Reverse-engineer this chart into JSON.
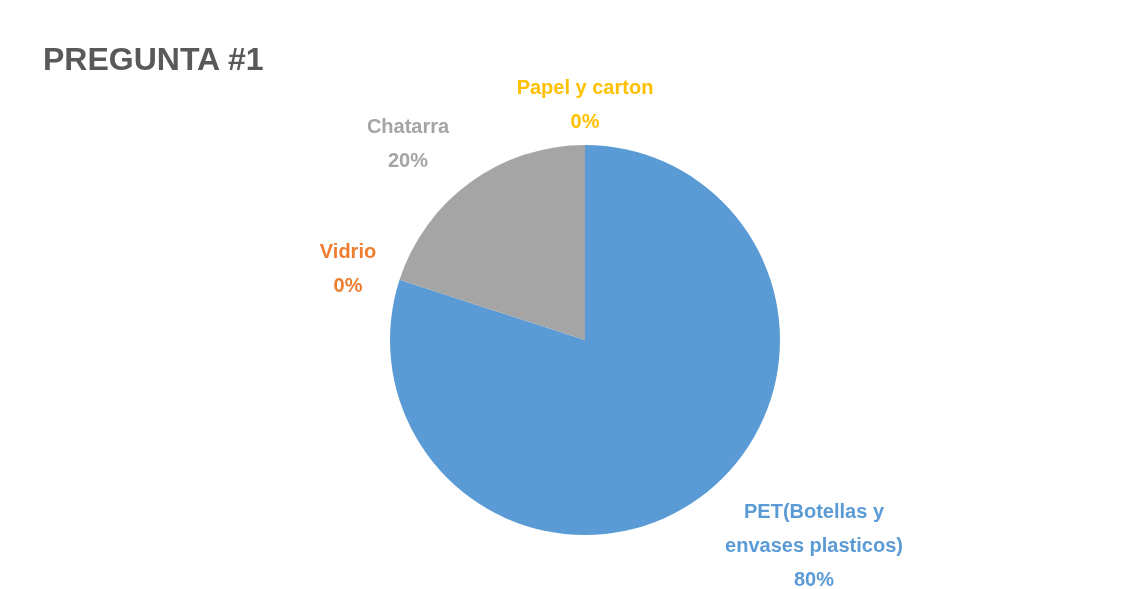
{
  "chart_data": {
    "type": "pie",
    "title": "PREGUNTA #1",
    "categories": [
      "PET(Botellas y\nenvases plasticos)",
      "Vidrio",
      "Chatarra",
      "Papel y carton"
    ],
    "values": [
      80,
      0,
      20,
      0
    ],
    "colors": [
      "#5b9bd5",
      "#ed7d31",
      "#a5a5a5",
      "#ffc000"
    ],
    "value_labels": [
      "80%",
      "0%",
      "20%",
      "0%"
    ],
    "legend": false
  }
}
